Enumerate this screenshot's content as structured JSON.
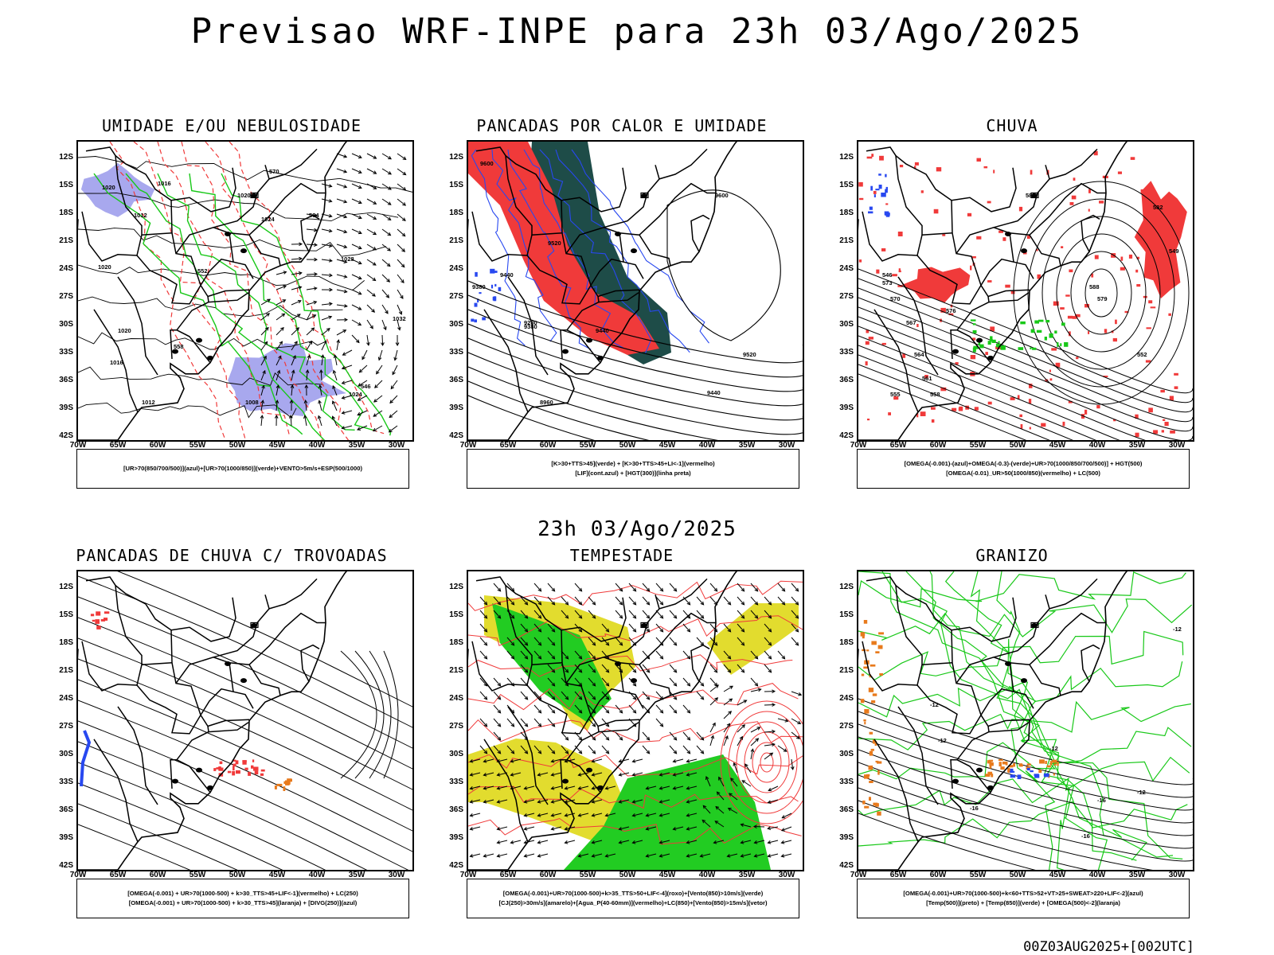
{
  "header": {
    "title": "Previsao WRF-INPE  para 23h 03/Ago/2025",
    "mid_title": "23h 03/Ago/2025",
    "footer": "00Z03AUG2025+[002UTC]"
  },
  "axes": {
    "lat_labels": [
      "12S",
      "15S",
      "18S",
      "21S",
      "24S",
      "27S",
      "30S",
      "33S",
      "36S",
      "39S",
      "42S"
    ],
    "lon_labels": [
      "70W",
      "65W",
      "60W",
      "55W",
      "50W",
      "45W",
      "40W",
      "35W",
      "30W"
    ]
  },
  "colors": {
    "red": "#f03a3a",
    "green": "#18c818",
    "bright_green": "#22cc22",
    "blue": "#2848f0",
    "lavender": "#a8a8ee",
    "dark_teal": "#1e4c48",
    "yellow": "#e2dc2e",
    "orange": "#e87a1c"
  },
  "panels": [
    {
      "id": "umidade",
      "title": "UMIDADE E/OU NEBULOSIDADE",
      "legend": [
        "[UR>70(850/700/500)](azul)+[UR>70(1000/850)](verde)+VENTO>5m/s+ESP(500/1000)"
      ],
      "contour_labels": [
        "1020",
        "1016",
        "1012",
        "1020",
        "1024",
        "1028",
        "1032",
        "1020",
        "1016",
        "1012",
        "1008",
        "1024",
        "1020",
        "570",
        "564",
        "558",
        "546",
        "552"
      ]
    },
    {
      "id": "pancadas-calor",
      "title": "PANCADAS POR CALOR E UMIDADE",
      "legend": [
        "[K>30+TTS>45](verde) + [K>30+TTS>45+LI<-1](vermelho)",
        "[LIF](cont.azul) + [HGT(300)](linha preta)"
      ],
      "contour_labels": [
        "9600",
        "9520",
        "9440",
        "9380",
        "9280",
        "9440",
        "9520",
        "9600",
        "9440",
        "9380",
        "8960"
      ]
    },
    {
      "id": "chuva",
      "title": "CHUVA",
      "legend": [
        "[OMEGA(-0.001)-(azul)+OMEGA(-0.3)-(verde)+UR>70(1000/850/700/500)] + HGT(500)",
        "[OMEGA(-0.01)_UR>50(1000/850)(vermelho) + LC(500)"
      ],
      "contour_labels": [
        "585",
        "582",
        "579",
        "576",
        "573",
        "570",
        "567",
        "564",
        "561",
        "558",
        "555",
        "552",
        "549",
        "546",
        "588"
      ]
    },
    {
      "id": "pancadas-trovoadas",
      "title": "PANCADAS DE CHUVA C/ TROVOADAS",
      "legend": [
        "[OMEGA(-0.001) + UR>70(1000-500) + k>30_TTS>45+LIF<-1](vermelho) + LC(250)",
        "[OMEGA(-0.001) + UR>70(1000-500) + k>30_TTS>45](laranja) + [DIVG(250)](azul)"
      ],
      "contour_labels": []
    },
    {
      "id": "tempestade",
      "title": "TEMPESTADE",
      "legend": [
        "[OMEGA(-0.001)+UR>70(1000-500)+k>35_TTS>50+LIF<-4](roxo)+[Vento(850)>10m/s](verde)",
        "[CJ(250)>30m/s](amarelo)+[Agua_P(40-60mm)](vermelho)+LC(850)+[Vento(850)>15m/s](vetor)"
      ],
      "contour_labels": []
    },
    {
      "id": "granizo",
      "title": "GRANIZO",
      "legend": [
        "[OMEGA(-0.001)+UR>70(1000-500)+k<60+TTS>52+VT>25+SWEAT>220+LIF<-2](azul)",
        "[Temp(500)](preto) + [Temp(850)](verde) + [OMEGA(500)<-2](laranja)"
      ],
      "contour_labels": [
        "-12",
        "-12",
        "-12",
        "-12",
        "-16",
        "-16",
        "-16",
        "-12"
      ]
    }
  ]
}
